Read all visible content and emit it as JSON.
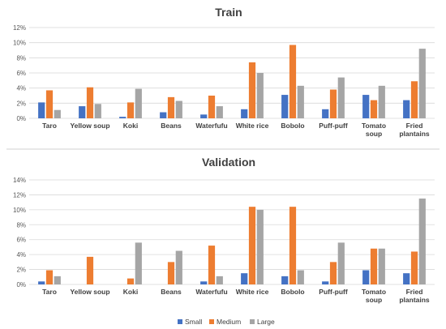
{
  "chart_data": [
    {
      "type": "bar",
      "title": "Train",
      "categories": [
        "Taro",
        "Yellow soup",
        "Koki",
        "Beans",
        "Waterfufu",
        "White rice",
        "Bobolo",
        "Puff-puff",
        "Tomato\nsoup",
        "Fried\nplantains"
      ],
      "series": [
        {
          "name": "Small",
          "values": [
            2.1,
            1.6,
            0.2,
            0.8,
            0.5,
            1.2,
            3.1,
            1.2,
            3.1,
            2.4
          ]
        },
        {
          "name": "Medium",
          "values": [
            3.7,
            4.1,
            2.1,
            2.8,
            3.0,
            7.4,
            9.7,
            3.8,
            2.4,
            4.9
          ]
        },
        {
          "name": "Large",
          "values": [
            1.1,
            1.9,
            3.9,
            2.3,
            1.6,
            6.0,
            4.3,
            5.4,
            4.3,
            9.2
          ]
        }
      ],
      "ylim": [
        0,
        12
      ],
      "yticks": [
        "0%",
        "2%",
        "4%",
        "6%",
        "8%",
        "10%",
        "12%"
      ],
      "grid": true
    },
    {
      "type": "bar",
      "title": "Validation",
      "categories": [
        "Taro",
        "Yellow soup",
        "Koki",
        "Beans",
        "Waterfufu",
        "White rice",
        "Bobolo",
        "Puff-puff",
        "Tomato\nsoup",
        "Fried\nplantains"
      ],
      "series": [
        {
          "name": "Small",
          "values": [
            0.4,
            0.0,
            0.0,
            0.0,
            0.4,
            1.5,
            1.1,
            0.4,
            1.9,
            1.5
          ]
        },
        {
          "name": "Medium",
          "values": [
            1.9,
            3.7,
            0.8,
            3.0,
            5.2,
            10.4,
            10.4,
            3.0,
            4.8,
            4.4
          ]
        },
        {
          "name": "Large",
          "values": [
            1.1,
            0.0,
            5.6,
            4.5,
            1.1,
            10.0,
            1.9,
            5.6,
            4.8,
            11.5
          ]
        }
      ],
      "ylim": [
        0,
        14
      ],
      "yticks": [
        "0%",
        "2%",
        "4%",
        "6%",
        "8%",
        "10%",
        "12%",
        "14%"
      ],
      "grid": true,
      "legend": "bottom"
    }
  ],
  "colors": {
    "Small": "#4472C4",
    "Medium": "#ED7D31",
    "Large": "#A5A5A5"
  }
}
